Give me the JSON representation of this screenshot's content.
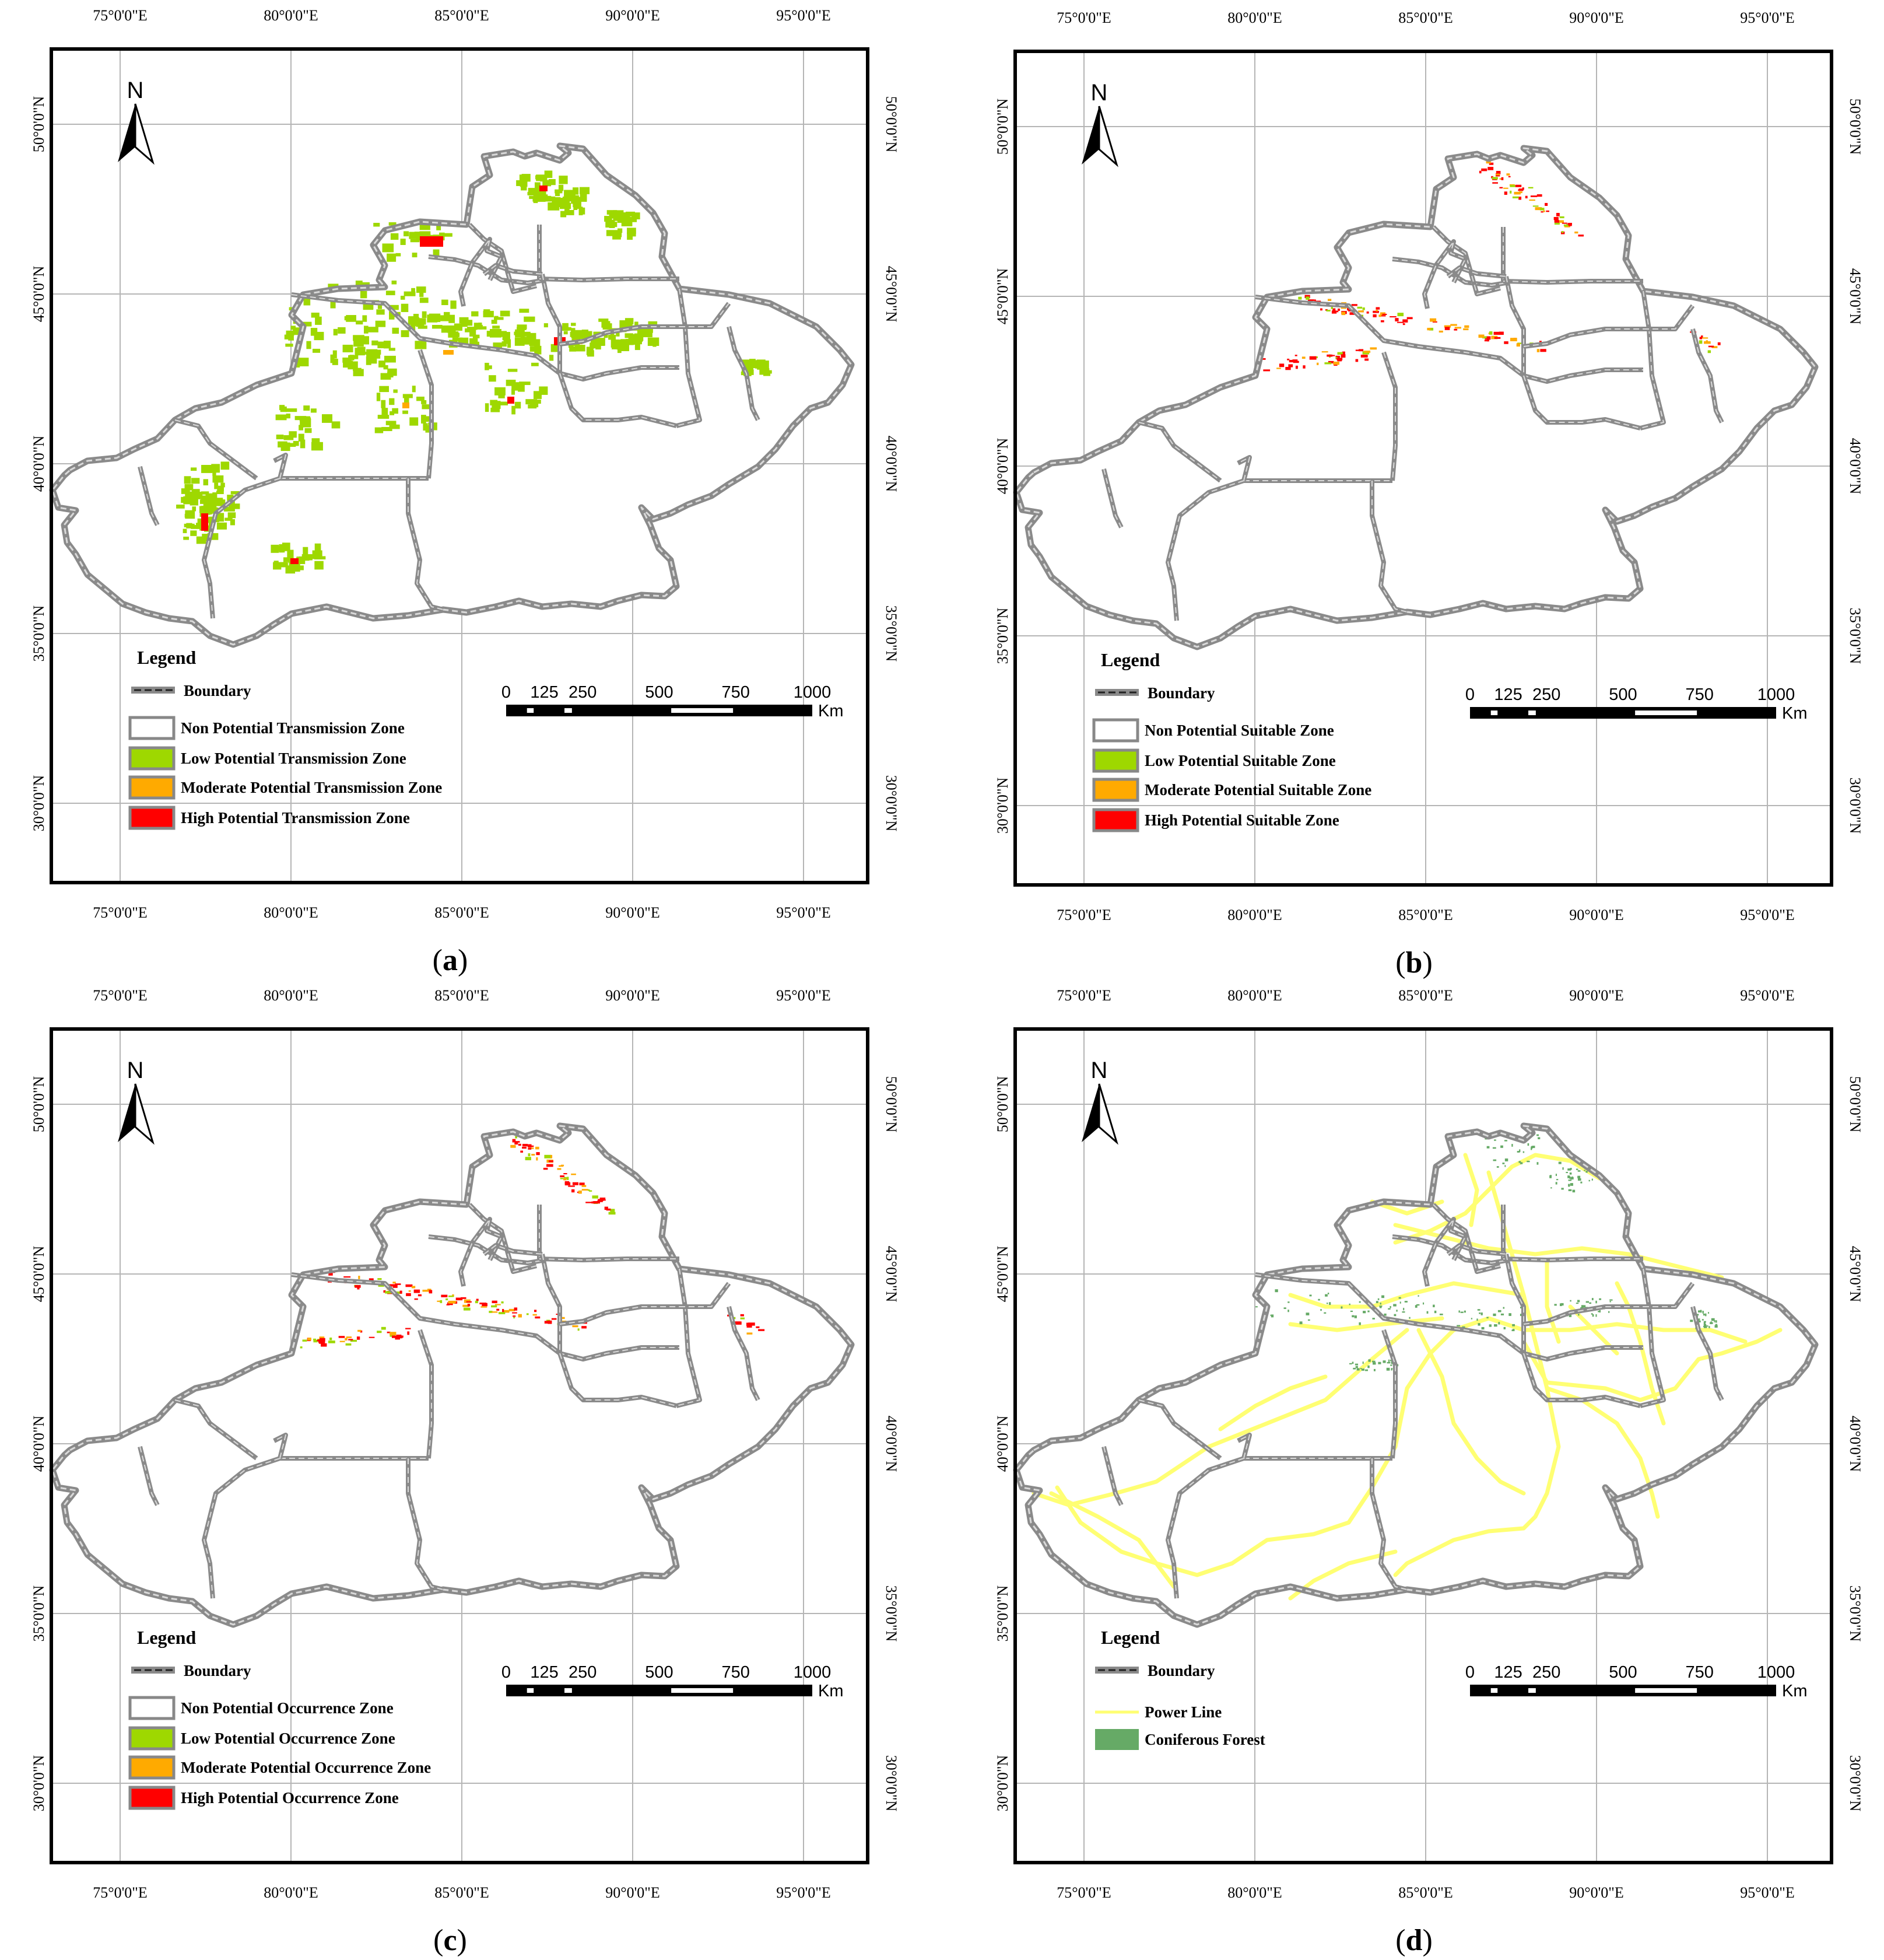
{
  "colors": {
    "boundary": "#8a8a8a",
    "low": "#9ed800",
    "moderate": "#ffaa00",
    "high": "#ff0000",
    "power_line": "#ffff73",
    "coniferous": "#66aa66",
    "grid": "#b5b5b5"
  },
  "axes": {
    "lon_labels": [
      "75°0'0\"E",
      "80°0'0\"E",
      "85°0'0\"E",
      "90°0'0\"E",
      "95°0'0\"E"
    ],
    "lat_labels": [
      "50°0'0\"N",
      "45°0'0\"N",
      "40°0'0\"N",
      "35°0'0\"N",
      "30°0'0\"N"
    ]
  },
  "north_label": "N",
  "scale_bar": {
    "ticks": [
      "0",
      "125",
      "250",
      "500",
      "750",
      "1000"
    ],
    "unit": "Km"
  },
  "panels": [
    {
      "caption": "a",
      "legend_title": "Legend",
      "boundary_label": "Boundary",
      "items": [
        {
          "label": "Non Potential Transmission Zone",
          "swatch": "none"
        },
        {
          "label": "Low Potential Transmission Zone",
          "swatch": "low"
        },
        {
          "label": "Moderate Potential Transmission Zone",
          "swatch": "moderate"
        },
        {
          "label": "High Potential Transmission Zone",
          "swatch": "high"
        }
      ]
    },
    {
      "caption": "b",
      "legend_title": "Legend",
      "boundary_label": "Boundary",
      "items": [
        {
          "label": "Non Potential Suitable Zone",
          "swatch": "none"
        },
        {
          "label": "Low Potential Suitable Zone",
          "swatch": "low"
        },
        {
          "label": "Moderate Potential Suitable Zone",
          "swatch": "moderate"
        },
        {
          "label": "High  Potential Suitable Zone",
          "swatch": "high"
        }
      ]
    },
    {
      "caption": "c",
      "legend_title": "Legend",
      "boundary_label": "Boundary",
      "items": [
        {
          "label": "Non Potential Occurrence Zone",
          "swatch": "none"
        },
        {
          "label": "Low Potential Occurrence Zone",
          "swatch": "low"
        },
        {
          "label": "Moderate Potential Occurrence Zone",
          "swatch": "moderate"
        },
        {
          "label": "High Potential Occurrence Zone",
          "swatch": "high"
        }
      ]
    },
    {
      "caption": "d",
      "legend_title": "Legend",
      "boundary_label": "Boundary",
      "items": [
        {
          "label": "Power Line",
          "swatch": "power_line"
        },
        {
          "label": "Coniferous Forest",
          "swatch": "coniferous"
        }
      ]
    }
  ]
}
